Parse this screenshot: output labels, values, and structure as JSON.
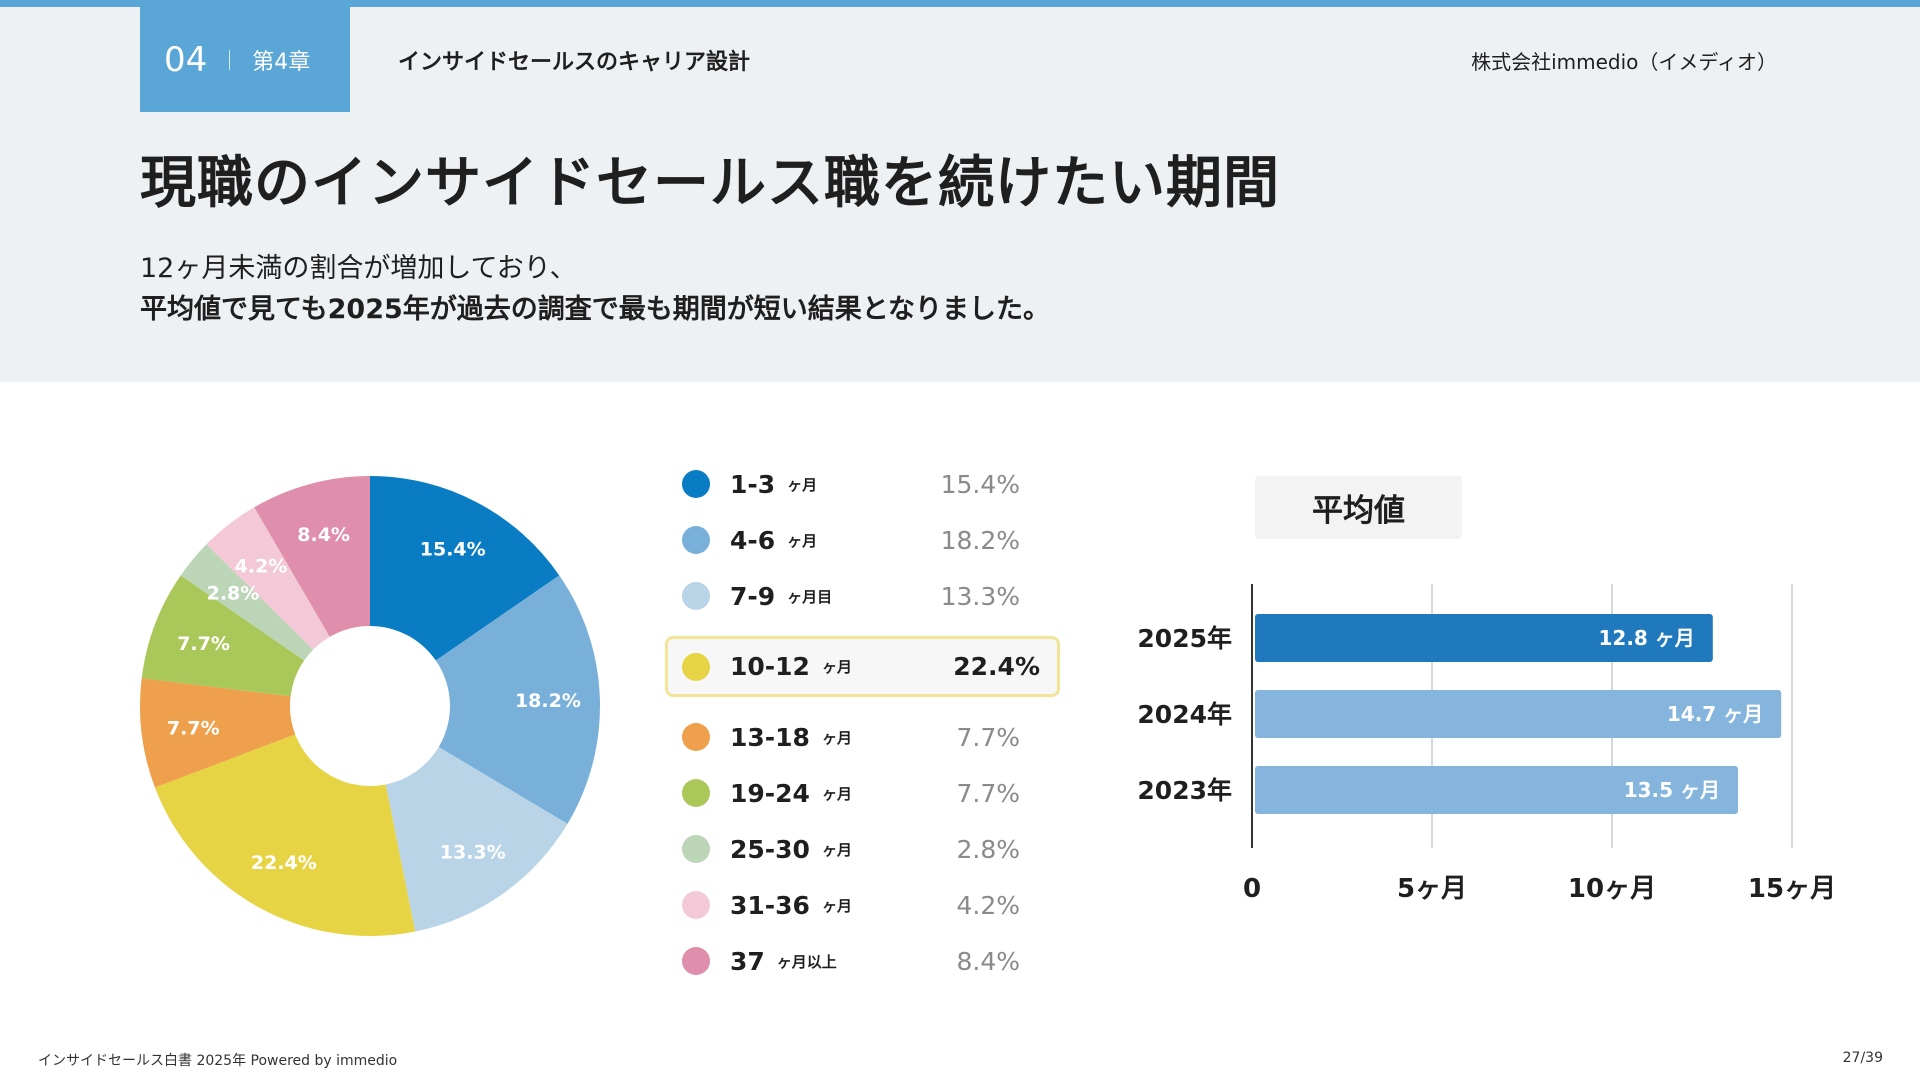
{
  "header": {
    "chapter_number": "04",
    "chapter_label": "第4章",
    "section_title": "インサイドセールスのキャリア設計",
    "company": "株式会社immedio（イメディオ）"
  },
  "title": "現職のインサイドセールス職を続けたい期間",
  "lead": {
    "line1": "12ヶ月未満の割合が増加しており、",
    "line2": "平均値で見ても2025年が過去の調査で最も期間が短い結果となりました。"
  },
  "legend": [
    {
      "label": "1-3",
      "unit": "ヶ月",
      "pct": "15.4%",
      "color": "#0a7cc4",
      "highlight": false
    },
    {
      "label": "4-6",
      "unit": "ヶ月",
      "pct": "18.2%",
      "color": "#78b0da",
      "highlight": false
    },
    {
      "label": "7-9",
      "unit": "ヶ月目",
      "pct": "13.3%",
      "color": "#b9d4e7",
      "highlight": false
    },
    {
      "label": "10-12",
      "unit": "ヶ月",
      "pct": "22.4%",
      "color": "#e7d444",
      "highlight": true
    },
    {
      "label": "13-18",
      "unit": "ヶ月",
      "pct": "7.7%",
      "color": "#eea04c",
      "highlight": false
    },
    {
      "label": "19-24",
      "unit": "ヶ月",
      "pct": "7.7%",
      "color": "#aac85a",
      "highlight": false
    },
    {
      "label": "25-30",
      "unit": "ヶ月",
      "pct": "2.8%",
      "color": "#bdd5b7",
      "highlight": false
    },
    {
      "label": "31-36",
      "unit": "ヶ月",
      "pct": "4.2%",
      "color": "#f3c9d8",
      "highlight": false
    },
    {
      "label": "37",
      "unit": "ヶ月以上",
      "pct": "8.4%",
      "color": "#df8eab",
      "highlight": false
    }
  ],
  "avg_label": "平均値",
  "chart_data": [
    {
      "type": "pie",
      "title": "",
      "categories": [
        "1-3ヶ月",
        "4-6ヶ月",
        "7-9ヶ月目",
        "10-12ヶ月",
        "13-18ヶ月",
        "19-24ヶ月",
        "25-30ヶ月",
        "31-36ヶ月",
        "37ヶ月以上"
      ],
      "values": [
        15.4,
        18.2,
        13.3,
        22.4,
        7.7,
        7.7,
        2.8,
        4.2,
        8.4
      ],
      "labels": [
        "15.4%",
        "18.2%",
        "13.3%",
        "22.4%",
        "7.7%",
        "7.7%",
        "2.8%",
        "4.2%",
        "8.4%"
      ],
      "colors": [
        "#0a7cc4",
        "#78b0da",
        "#b9d4e7",
        "#e7d444",
        "#eea04c",
        "#aac85a",
        "#bdd5b7",
        "#f3c9d8",
        "#df8eab"
      ]
    },
    {
      "type": "bar",
      "orientation": "horizontal",
      "title": "平均値",
      "categories": [
        "2025年",
        "2024年",
        "2023年"
      ],
      "values": [
        12.8,
        14.7,
        13.5
      ],
      "value_labels": [
        "12.8 ヶ月",
        "14.7 ヶ月",
        "13.5 ヶ月"
      ],
      "colors": [
        "#2079bc",
        "#85b5dd",
        "#85b5dd"
      ],
      "xlim": [
        0,
        15
      ],
      "xticks": [
        0,
        5,
        10,
        15
      ],
      "xtick_labels": [
        "0",
        "5ヶ月",
        "10ヶ月",
        "15ヶ月"
      ],
      "grid": true
    }
  ],
  "footer": {
    "left": "インサイドセールス白書 2025年 Powered by immedio",
    "page": "27/39"
  }
}
